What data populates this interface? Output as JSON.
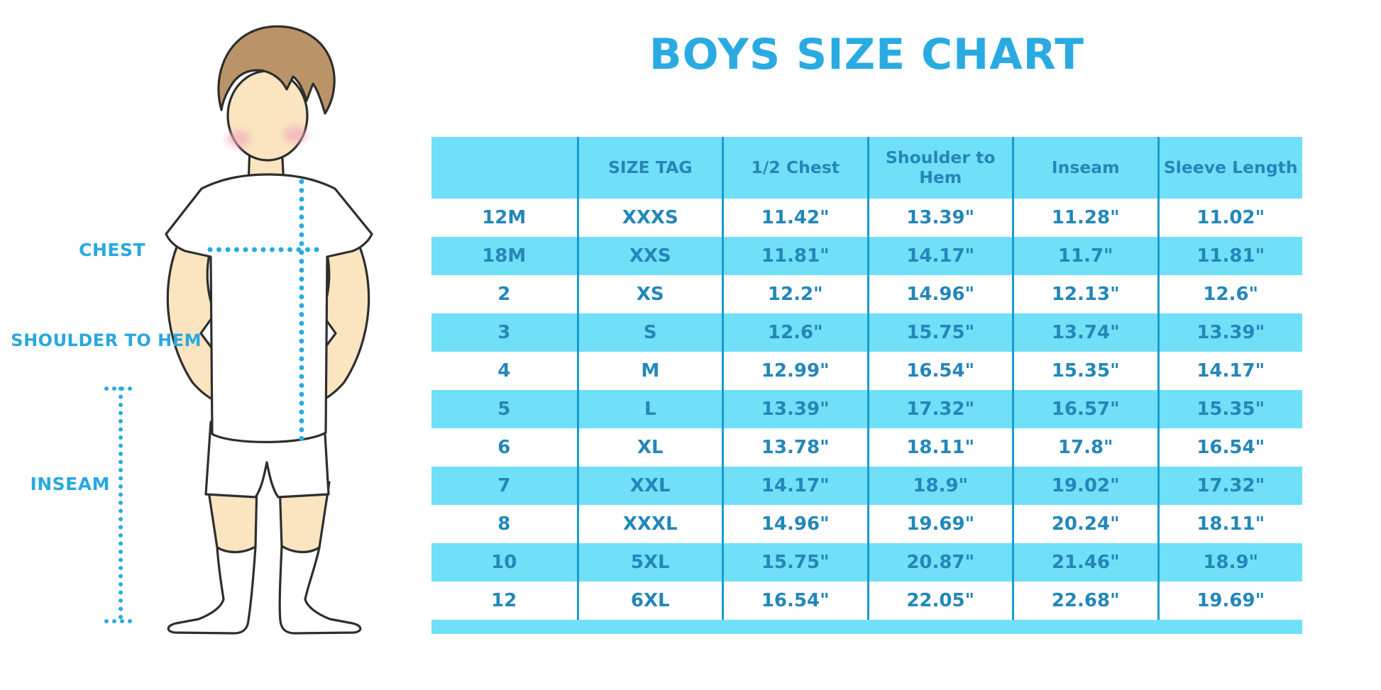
{
  "chart_data": {
    "type": "table",
    "title": "BOYS SIZE CHART",
    "columns": [
      "",
      "SIZE TAG",
      "1/2 Chest",
      "Shoulder to Hem",
      "Inseam",
      "Sleeve Length"
    ],
    "rows": [
      [
        "12M",
        "XXXS",
        "11.42\"",
        "13.39\"",
        "11.28\"",
        "11.02\""
      ],
      [
        "18M",
        "XXS",
        "11.81\"",
        "14.17\"",
        "11.7\"",
        "11.81\""
      ],
      [
        "2",
        "XS",
        "12.2\"",
        "14.96\"",
        "12.13\"",
        "12.6\""
      ],
      [
        "3",
        "S",
        "12.6\"",
        "15.75\"",
        "13.74\"",
        "13.39\""
      ],
      [
        "4",
        "M",
        "12.99\"",
        "16.54\"",
        "15.35\"",
        "14.17\""
      ],
      [
        "5",
        "L",
        "13.39\"",
        "17.32\"",
        "16.57\"",
        "15.35\""
      ],
      [
        "6",
        "XL",
        "13.78\"",
        "18.11\"",
        "17.8\"",
        "16.54\""
      ],
      [
        "7",
        "XXL",
        "14.17\"",
        "18.9\"",
        "19.02\"",
        "17.32\""
      ],
      [
        "8",
        "XXXL",
        "14.96\"",
        "19.69\"",
        "20.24\"",
        "18.11\""
      ],
      [
        "10",
        "5XL",
        "15.75\"",
        "20.87\"",
        "21.46\"",
        "18.9\""
      ],
      [
        "12",
        "6XL",
        "16.54\"",
        "22.05\"",
        "22.68\"",
        "19.69\""
      ]
    ],
    "annotations": [
      "CHEST",
      "SHOULDER TO HEM",
      "INSEAM"
    ],
    "units": "inches",
    "layout": {
      "row_alternation": "white / light-cyan",
      "header_fill": "light-cyan"
    }
  },
  "figure": {
    "chest_label": "CHEST",
    "shoulder_to_hem_label": "SHOULDER TO HEM",
    "inseam_label": "INSEAM"
  },
  "colors": {
    "accent_title": "#29ABE2",
    "label_text": "#29A8DF",
    "table_fill": "#70DFF8",
    "table_text": "#2387B9",
    "divider": "#189CCF",
    "hair": "#BA9468",
    "skin": "#FAE5C0",
    "blush": "#F2A8BC",
    "outline": "#2E2E2E"
  }
}
